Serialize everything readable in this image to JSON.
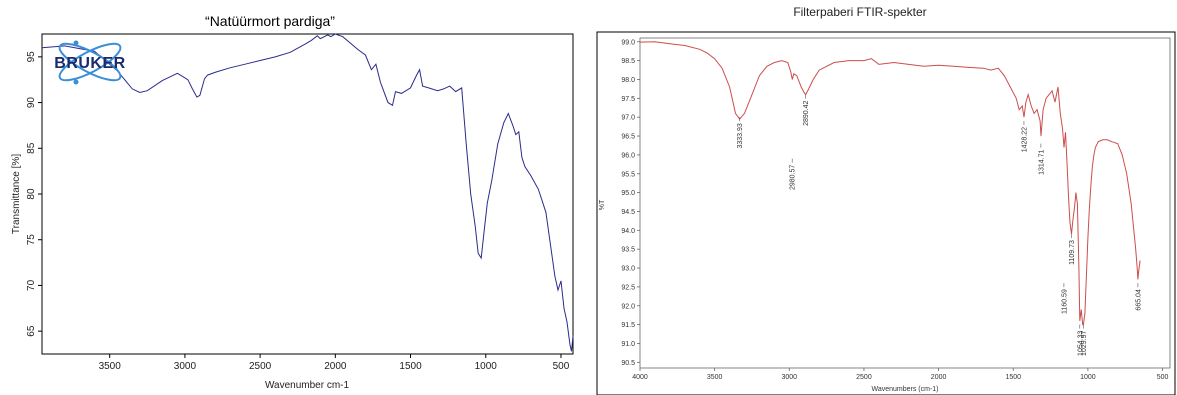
{
  "chart_data": [
    {
      "type": "line",
      "title": "“Natüürmort pardiga”",
      "xlabel": "Wavenumber cm-1",
      "ylabel": "Transmittance [%]",
      "xlim": [
        3950,
        420
      ],
      "ylim": [
        62.5,
        97.5
      ],
      "x_ticks": [
        "3500",
        "3000",
        "2500",
        "2000",
        "1500",
        "1000",
        "500"
      ],
      "x_tick_values": [
        3500,
        3000,
        2500,
        2000,
        1500,
        1000,
        500
      ],
      "y_ticks": [
        "65",
        "70",
        "75",
        "80",
        "85",
        "90",
        "95"
      ],
      "y_tick_values": [
        65,
        70,
        75,
        80,
        85,
        90,
        95
      ],
      "logo": "BRUKER",
      "line_color": "#2b2b8c",
      "series": [
        {
          "x": [
            3950,
            3800,
            3600,
            3450,
            3350,
            3300,
            3250,
            3150,
            3050,
            2980,
            2950,
            2920,
            2900,
            2870,
            2850,
            2800,
            2700,
            2600,
            2500,
            2400,
            2300,
            2200,
            2160,
            2120,
            2100,
            2050,
            2030,
            2000,
            1950,
            1850,
            1800,
            1760,
            1730,
            1700,
            1650,
            1620,
            1600,
            1560,
            1500,
            1460,
            1440,
            1420,
            1380,
            1320,
            1280,
            1240,
            1200,
            1160,
            1130,
            1100,
            1070,
            1050,
            1030,
            1010,
            990,
            960,
            920,
            880,
            850,
            820,
            800,
            780,
            760,
            740,
            700,
            650,
            600,
            570,
            540,
            520,
            500,
            480,
            460,
            440,
            430,
            420
          ],
          "y": [
            96.0,
            96.2,
            95.6,
            93.5,
            91.5,
            91.1,
            91.3,
            92.4,
            93.2,
            92.5,
            91.5,
            90.6,
            90.8,
            92.6,
            93.0,
            93.3,
            93.8,
            94.2,
            94.6,
            95.0,
            95.5,
            96.4,
            96.8,
            97.3,
            97.0,
            97.4,
            97.2,
            97.5,
            97.2,
            95.8,
            95.2,
            93.6,
            94.2,
            92.2,
            90.0,
            89.7,
            91.2,
            91.0,
            91.6,
            93.0,
            93.6,
            91.8,
            91.6,
            91.3,
            91.5,
            91.8,
            91.2,
            91.6,
            85.5,
            80.0,
            76.5,
            73.5,
            73.0,
            76.0,
            79.0,
            81.5,
            85.5,
            87.8,
            88.8,
            87.5,
            86.5,
            86.8,
            84.0,
            83.0,
            82.0,
            80.5,
            78.0,
            74.5,
            71.0,
            69.5,
            70.5,
            67.5,
            66.0,
            63.5,
            62.8,
            64.5
          ]
        }
      ]
    },
    {
      "type": "line",
      "title": "Filterpaberi FTIR-spekter",
      "xlabel": "Wavenumbers (cm-1)",
      "ylabel": "%T",
      "xlim": [
        4000,
        450
      ],
      "ylim": [
        90.35,
        99.1
      ],
      "x_ticks": [
        "4000",
        "3500",
        "3000",
        "2500",
        "2000",
        "1500",
        "1000",
        "500"
      ],
      "x_tick_values": [
        4000,
        3500,
        3000,
        2500,
        2000,
        1500,
        1000,
        500
      ],
      "y_ticks": [
        "99.0",
        "98.5",
        "98.0",
        "97.5",
        "97.0",
        "96.5",
        "96.0",
        "95.5",
        "95.0",
        "94.5",
        "94.0",
        "93.5",
        "93.0",
        "92.5",
        "92.0",
        "91.5",
        "91.0",
        "90.5"
      ],
      "y_tick_values": [
        99.0,
        98.5,
        98.0,
        97.5,
        97.0,
        96.5,
        96.0,
        95.5,
        95.0,
        94.5,
        94.0,
        93.5,
        93.0,
        92.5,
        92.0,
        91.5,
        91.0,
        90.5
      ],
      "line_color": "#cc4d4d",
      "peak_labels": [
        {
          "label": "3333.93",
          "x": 3333.93,
          "y": 97.0
        },
        {
          "label": "2980.57",
          "x": 2980.57,
          "y": 95.9
        },
        {
          "label": "2890.42",
          "x": 2890.42,
          "y": 97.6
        },
        {
          "label": "1428.22",
          "x": 1428.22,
          "y": 96.9
        },
        {
          "label": "1314.71",
          "x": 1314.71,
          "y": 96.3
        },
        {
          "label": "1109.73",
          "x": 1109.73,
          "y": 93.9
        },
        {
          "label": "1160.59",
          "x": 1160.59,
          "y": 92.6
        },
        {
          "label": "1054.33",
          "x": 1054.33,
          "y": 91.5
        },
        {
          "label": "1029.97",
          "x": 1029.97,
          "y": 91.5
        },
        {
          "label": "665.04",
          "x": 665.04,
          "y": 92.6
        }
      ],
      "series": [
        {
          "x": [
            4000,
            3900,
            3800,
            3700,
            3600,
            3550,
            3500,
            3450,
            3400,
            3360,
            3333,
            3300,
            3250,
            3200,
            3150,
            3100,
            3050,
            3010,
            2990,
            2980,
            2970,
            2950,
            2920,
            2900,
            2890,
            2870,
            2840,
            2800,
            2700,
            2600,
            2500,
            2450,
            2400,
            2300,
            2200,
            2100,
            2000,
            1900,
            1800,
            1700,
            1650,
            1600,
            1560,
            1520,
            1480,
            1460,
            1440,
            1428,
            1415,
            1400,
            1380,
            1360,
            1340,
            1320,
            1314,
            1300,
            1280,
            1260,
            1240,
            1220,
            1200,
            1185,
            1170,
            1160,
            1150,
            1140,
            1130,
            1120,
            1110,
            1100,
            1090,
            1080,
            1070,
            1060,
            1054,
            1045,
            1035,
            1030,
            1020,
            1010,
            1000,
            990,
            980,
            970,
            960,
            950,
            930,
            900,
            870,
            840,
            800,
            770,
            740,
            710,
            690,
            680,
            670,
            665,
            660,
            650
          ],
          "y": [
            98.99,
            99.0,
            98.95,
            98.9,
            98.8,
            98.7,
            98.55,
            98.3,
            97.8,
            97.1,
            96.95,
            97.1,
            97.6,
            98.1,
            98.35,
            98.45,
            98.5,
            98.45,
            98.2,
            98.0,
            98.15,
            98.1,
            97.8,
            97.65,
            97.6,
            97.75,
            98.0,
            98.25,
            98.45,
            98.5,
            98.5,
            98.55,
            98.4,
            98.45,
            98.4,
            98.35,
            98.38,
            98.35,
            98.32,
            98.3,
            98.25,
            98.3,
            98.1,
            97.8,
            97.5,
            97.2,
            97.3,
            97.0,
            97.4,
            97.6,
            97.3,
            97.1,
            97.2,
            96.9,
            96.5,
            97.2,
            97.5,
            97.6,
            97.7,
            97.4,
            97.8,
            97.1,
            96.7,
            96.2,
            96.6,
            95.8,
            94.9,
            94.2,
            93.9,
            94.3,
            94.6,
            95.0,
            94.7,
            93.0,
            91.6,
            91.9,
            91.5,
            91.5,
            91.8,
            92.8,
            93.8,
            94.6,
            95.2,
            95.7,
            96.0,
            96.2,
            96.35,
            96.4,
            96.4,
            96.35,
            96.3,
            96.0,
            95.5,
            94.7,
            93.9,
            93.5,
            93.0,
            92.7,
            92.9,
            93.2
          ]
        }
      ]
    }
  ]
}
